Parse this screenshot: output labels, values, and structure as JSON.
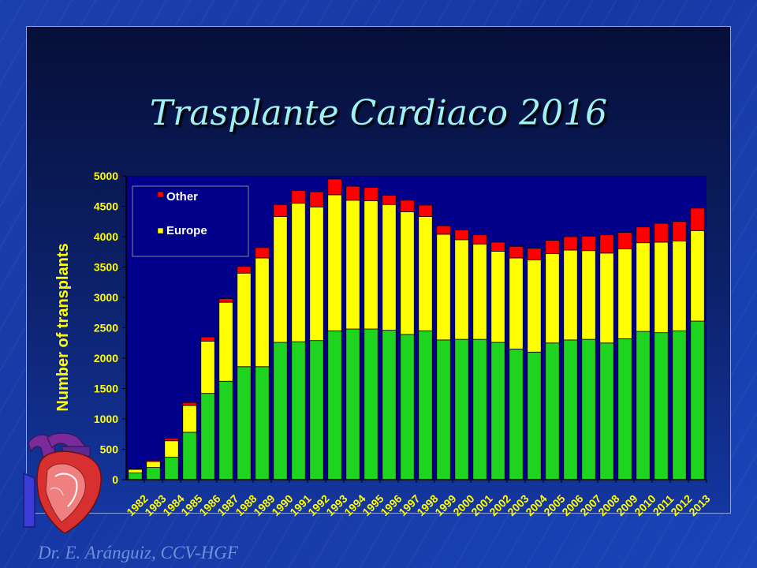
{
  "slide": {
    "title": "Trasplante Cardiaco 2016",
    "footer": "Dr. E. Aránguiz, CCV-HGF"
  },
  "colors": {
    "green": "#1ed41e",
    "yellow": "#ffff00",
    "red": "#ff0000",
    "plot_bg": "#00008b",
    "axis_text": "#ffff00",
    "legend_text": "#ffffff"
  },
  "chart_data": {
    "type": "bar",
    "stacked": true,
    "title": "",
    "xlabel": "",
    "ylabel": "Number of transplants",
    "ylim": [
      0,
      5000
    ],
    "yticks": [
      0,
      500,
      1000,
      1500,
      2000,
      2500,
      3000,
      3500,
      4000,
      4500,
      5000
    ],
    "grid": false,
    "legend_position": "top-left",
    "categories": [
      "1982",
      "1983",
      "1984",
      "1985",
      "1986",
      "1987",
      "1988",
      "1989",
      "1990",
      "1991",
      "1992",
      "1993",
      "1994",
      "1995",
      "1996",
      "1997",
      "1998",
      "1999",
      "2000",
      "2001",
      "2002",
      "2003",
      "2004",
      "2005",
      "2006",
      "2007",
      "2008",
      "2009",
      "2010",
      "2011",
      "2012",
      "2013"
    ],
    "series": [
      {
        "name": "",
        "color": "green",
        "values": [
          110,
          200,
          370,
          780,
          1420,
          1620,
          1860,
          1860,
          2260,
          2270,
          2290,
          2450,
          2480,
          2480,
          2460,
          2390,
          2450,
          2300,
          2310,
          2310,
          2260,
          2150,
          2100,
          2250,
          2300,
          2310,
          2250,
          2320,
          2440,
          2420,
          2450,
          2610
        ]
      },
      {
        "name": "Europe",
        "color": "yellow",
        "values": [
          60,
          100,
          270,
          440,
          860,
          1300,
          1540,
          1790,
          2070,
          2280,
          2200,
          2240,
          2120,
          2110,
          2070,
          2020,
          1880,
          1740,
          1640,
          1570,
          1500,
          1500,
          1520,
          1470,
          1480,
          1460,
          1480,
          1480,
          1460,
          1490,
          1480,
          1490
        ]
      },
      {
        "name": "Other",
        "color": "red",
        "values": [
          10,
          20,
          40,
          50,
          70,
          60,
          110,
          170,
          200,
          210,
          250,
          260,
          230,
          220,
          150,
          190,
          190,
          140,
          160,
          150,
          150,
          190,
          190,
          220,
          220,
          240,
          300,
          270,
          260,
          310,
          320,
          370
        ]
      }
    ]
  }
}
